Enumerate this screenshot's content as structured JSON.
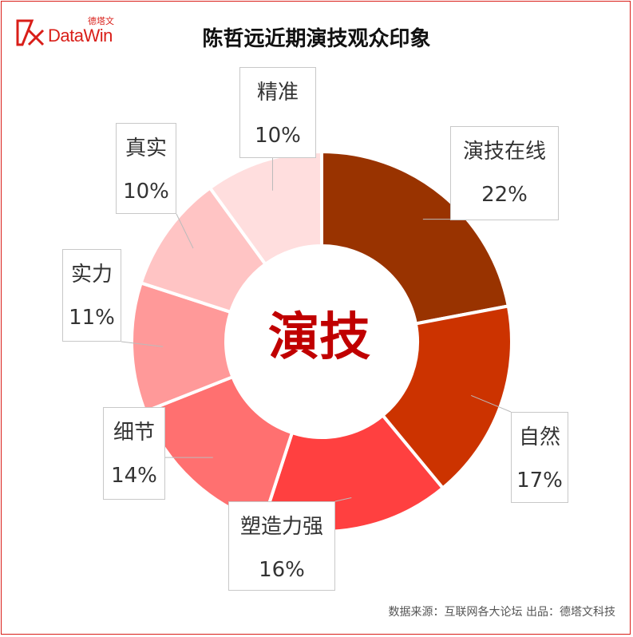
{
  "logo": {
    "cn": "德塔文",
    "en": "DataWin"
  },
  "title": "陈哲远近期演技观众印象",
  "center_label": "演技",
  "source": "数据来源：互联网各大论坛   出品：德塔文科技",
  "chart_data": {
    "type": "pie",
    "title": "陈哲远近期演技观众印象",
    "categories": [
      "演技在线",
      "自然",
      "塑造力强",
      "细节",
      "实力",
      "真实",
      "精准"
    ],
    "values": [
      22,
      17,
      16,
      14,
      11,
      10,
      10
    ],
    "labels": [
      "22%",
      "17%",
      "16%",
      "14%",
      "11%",
      "10%",
      "10%"
    ],
    "colors": [
      "#993300",
      "#cc3300",
      "#ff4040",
      "#ff7070",
      "#ff9999",
      "#ffc4c4",
      "#ffdede"
    ]
  }
}
